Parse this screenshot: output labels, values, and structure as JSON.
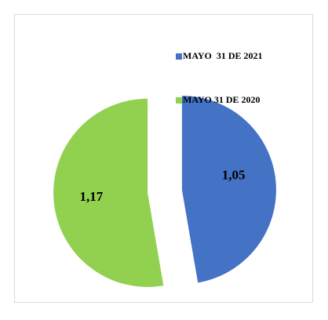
{
  "chart_data": {
    "type": "pie",
    "categories": [
      "MAYO  31 DE 2021",
      "MAYO 31 DE 2020"
    ],
    "values": [
      1.05,
      1.17
    ],
    "value_labels": [
      "1,05",
      "1,17"
    ],
    "colors": [
      "#4472c4",
      "#92d050"
    ],
    "legend": "top-right"
  }
}
